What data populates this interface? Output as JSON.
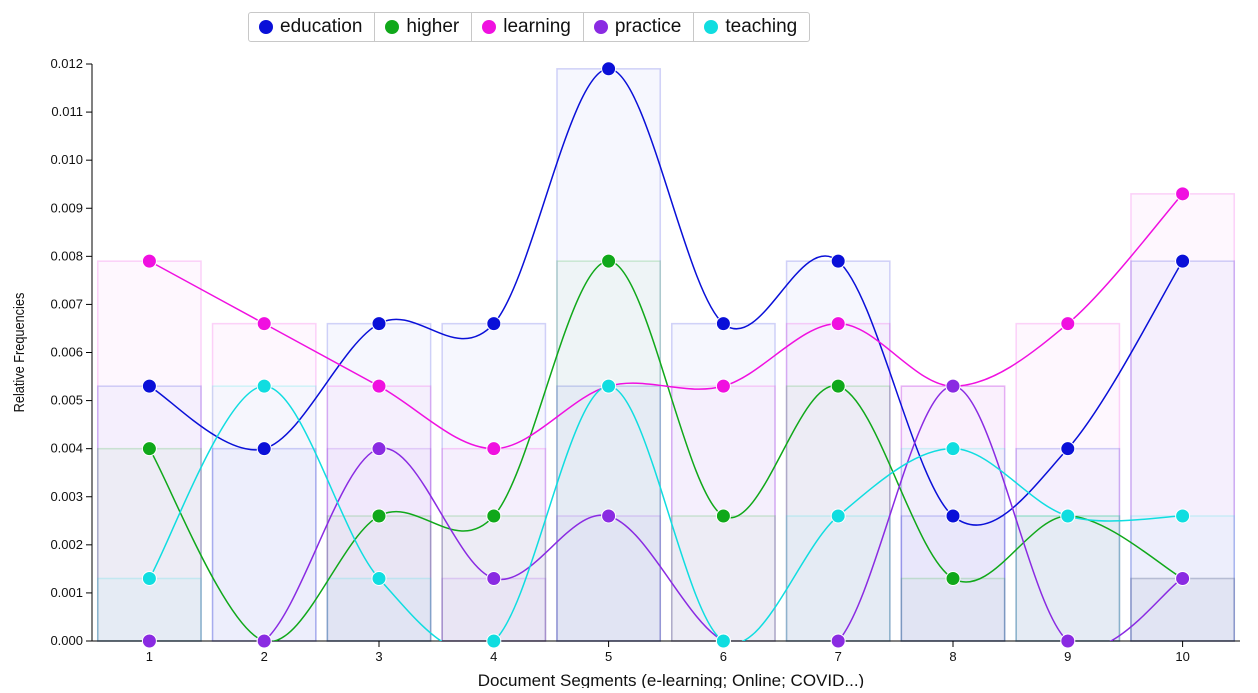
{
  "chart_data": {
    "type": "line",
    "xlabel": "Document Segments (e-learning; Online; COVID...)",
    "ylabel": "Relative Frequencies",
    "ylim": [
      0,
      0.012
    ],
    "yticks": [
      "0.000",
      "0.001",
      "0.002",
      "0.003",
      "0.004",
      "0.005",
      "0.006",
      "0.007",
      "0.008",
      "0.009",
      "0.010",
      "0.011",
      "0.012"
    ],
    "categories": [
      "1",
      "2",
      "3",
      "4",
      "5",
      "6",
      "7",
      "8",
      "9",
      "10"
    ],
    "legend_position": "top-center",
    "series": [
      {
        "name": "education",
        "color": "#0a10d8",
        "values": [
          0.0053,
          0.004,
          0.0066,
          0.0066,
          0.0119,
          0.0066,
          0.0079,
          0.0026,
          0.004,
          0.0079
        ]
      },
      {
        "name": "higher",
        "color": "#10a81a",
        "values": [
          0.004,
          0.0,
          0.0026,
          0.0026,
          0.0079,
          0.0026,
          0.0053,
          0.0013,
          0.0026,
          0.0013
        ]
      },
      {
        "name": "learning",
        "color": "#f010e0",
        "values": [
          0.0079,
          0.0066,
          0.0053,
          0.004,
          0.0053,
          0.0053,
          0.0066,
          0.0053,
          0.0066,
          0.0093
        ]
      },
      {
        "name": "practice",
        "color": "#8a2be2",
        "values": [
          0.0,
          0.0,
          0.004,
          0.0013,
          0.0026,
          0.0,
          0.0,
          0.0053,
          0.0,
          0.0013
        ]
      },
      {
        "name": "teaching",
        "color": "#10dde0",
        "values": [
          0.0013,
          0.0053,
          0.0013,
          0.0,
          0.0053,
          0.0,
          0.0026,
          0.004,
          0.0026,
          0.0026
        ]
      }
    ]
  }
}
